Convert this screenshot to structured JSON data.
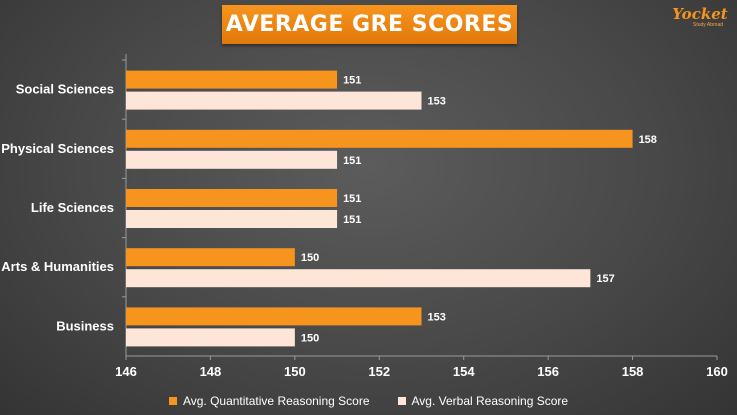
{
  "title": "AVERAGE GRE SCORES",
  "logo": {
    "brand": "Yocket",
    "tagline": "Study Abroad"
  },
  "colors": {
    "quant": "#f7941d",
    "verbal": "#fde6d7"
  },
  "chart_data": {
    "type": "bar",
    "orientation": "horizontal",
    "title": "AVERAGE GRE SCORES",
    "categories": [
      "Social Sciences",
      "Physical Sciences",
      "Life Sciences",
      "Arts & Humanities",
      "Business"
    ],
    "series": [
      {
        "name": "Avg. Quantitative Reasoning Score",
        "values": [
          151,
          158,
          151,
          150,
          153
        ]
      },
      {
        "name": "Avg. Verbal Reasoning Score",
        "values": [
          153,
          151,
          151,
          157,
          150
        ]
      }
    ],
    "xlim": [
      146,
      160
    ],
    "x_ticks": [
      "146",
      "148",
      "150",
      "152",
      "154",
      "156",
      "158",
      "160"
    ],
    "grid": false,
    "legend_position": "bottom",
    "data_labels": true
  }
}
